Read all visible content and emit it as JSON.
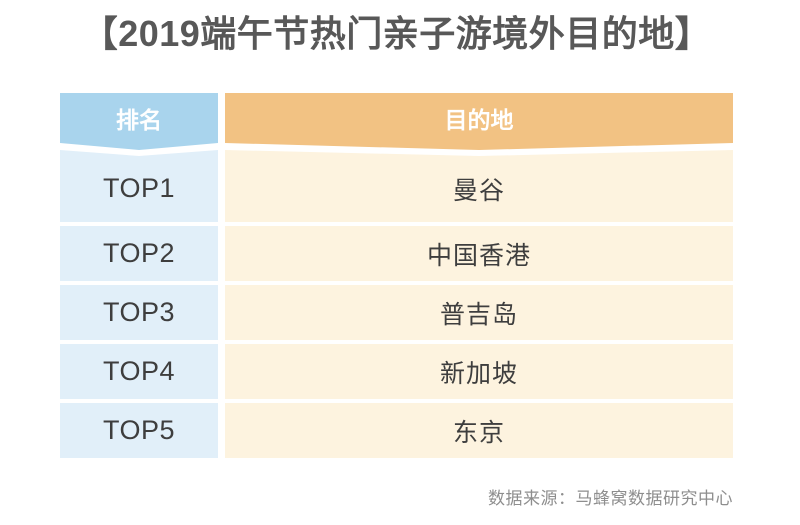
{
  "title": "【2019端午节热门亲子游境外目的地】",
  "table": {
    "columns": [
      {
        "key": "rank",
        "label": "排名"
      },
      {
        "key": "destination",
        "label": "目的地"
      }
    ],
    "rows": [
      {
        "rank": "TOP1",
        "destination": "曼谷"
      },
      {
        "rank": "TOP2",
        "destination": "中国香港"
      },
      {
        "rank": "TOP3",
        "destination": "普吉岛"
      },
      {
        "rank": "TOP4",
        "destination": "新加坡"
      },
      {
        "rank": "TOP5",
        "destination": "东京"
      }
    ]
  },
  "source": "数据来源：马蜂窝数据研究中心",
  "colors": {
    "header_rank_bg": "#A9D4ED",
    "header_dest_bg": "#F2C283",
    "row_rank_bg": "#E1EFF9",
    "row_dest_bg": "#FDF3DF",
    "header_text": "#FFFFFF",
    "cell_text": "#3E3E3E",
    "title_text": "#585858",
    "source_text": "#8E8E8E"
  },
  "chart_data": {
    "type": "table",
    "title": "【2019端午节热门亲子游境外目的地】",
    "columns": [
      "排名",
      "目的地"
    ],
    "rows": [
      [
        "TOP1",
        "曼谷"
      ],
      [
        "TOP2",
        "中国香港"
      ],
      [
        "TOP3",
        "普吉岛"
      ],
      [
        "TOP4",
        "新加坡"
      ],
      [
        "TOP5",
        "东京"
      ]
    ],
    "source": "数据来源：马蜂窝数据研究中心"
  }
}
